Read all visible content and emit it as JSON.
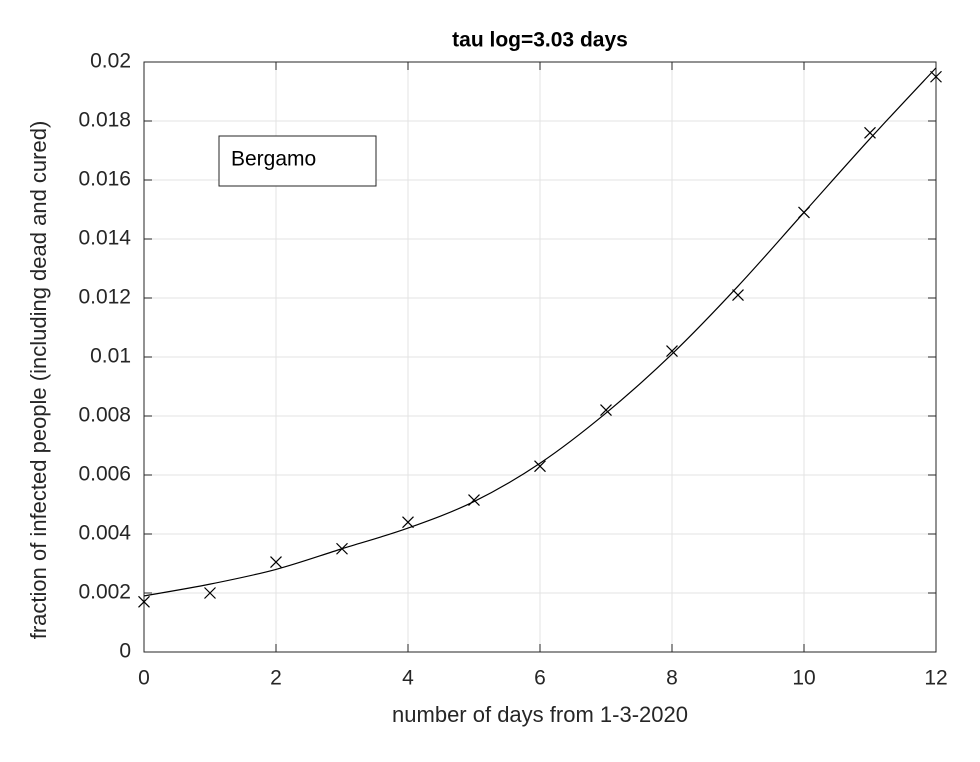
{
  "chart_data": {
    "type": "line",
    "title": "tau log=3.03 days",
    "x_label": "number of days from 1-3-2020",
    "y_label": "fraction of infected people (including dead and cured)",
    "x": [
      0,
      1,
      2,
      3,
      4,
      5,
      6,
      7,
      8,
      9,
      10,
      11,
      12
    ],
    "series": [
      {
        "name": "Bergamo",
        "color": "#000000",
        "marker": "x",
        "values": [
          0.0017,
          0.002,
          0.00305,
          0.0035,
          0.0044,
          0.00515,
          0.0063,
          0.0082,
          0.0102,
          0.0121,
          0.0149,
          0.0176,
          0.0195
        ]
      },
      {
        "color": "#000000",
        "values": [
          0.0019,
          0.0023,
          0.0028,
          0.0035,
          0.0042,
          0.0051,
          0.0064,
          0.0081,
          0.0101,
          0.0124,
          0.0149,
          0.0174,
          0.0198
        ]
      }
    ],
    "xlim": [
      0,
      12
    ],
    "xticks": [
      0,
      2,
      4,
      6,
      8,
      10,
      12
    ],
    "ylim": [
      0,
      0.02
    ],
    "yticks": [
      0,
      0.002,
      0.004,
      0.006,
      0.008,
      0.01,
      0.012,
      0.014,
      0.016,
      0.018,
      0.02
    ],
    "grid": true,
    "legend": "upper-left"
  }
}
